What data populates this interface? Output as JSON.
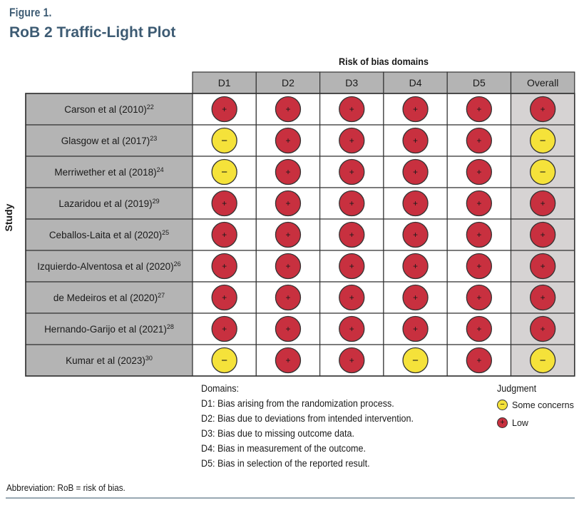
{
  "figure": {
    "label": "Figure 1.",
    "title": "RoB 2 Traffic-Light Plot"
  },
  "chart_data": {
    "type": "table",
    "title": "Risk of bias domains",
    "ylabel": "Study",
    "columns": [
      "D1",
      "D2",
      "D3",
      "D4",
      "D5",
      "Overall"
    ],
    "rows": [
      {
        "study": "Carson et al (2010)",
        "ref": "22",
        "judgments": [
          "Low",
          "Low",
          "Low",
          "Low",
          "Low",
          "Low"
        ]
      },
      {
        "study": "Glasgow et al (2017)",
        "ref": "23",
        "judgments": [
          "Some concerns",
          "Low",
          "Low",
          "Low",
          "Low",
          "Some concerns"
        ]
      },
      {
        "study": "Merriwether et al (2018)",
        "ref": "24",
        "judgments": [
          "Some concerns",
          "Low",
          "Low",
          "Low",
          "Low",
          "Some concerns"
        ]
      },
      {
        "study": "Lazaridou et al (2019)",
        "ref": "29",
        "judgments": [
          "Low",
          "Low",
          "Low",
          "Low",
          "Low",
          "Low"
        ]
      },
      {
        "study": "Ceballos-Laita et al (2020)",
        "ref": "25",
        "judgments": [
          "Low",
          "Low",
          "Low",
          "Low",
          "Low",
          "Low"
        ]
      },
      {
        "study": "Izquierdo-Alventosa et al (2020)",
        "ref": "26",
        "judgments": [
          "Low",
          "Low",
          "Low",
          "Low",
          "Low",
          "Low"
        ]
      },
      {
        "study": "de Medeiros et al (2020)",
        "ref": "27",
        "judgments": [
          "Low",
          "Low",
          "Low",
          "Low",
          "Low",
          "Low"
        ]
      },
      {
        "study": "Hernando-Garijo et al (2021)",
        "ref": "28",
        "judgments": [
          "Low",
          "Low",
          "Low",
          "Low",
          "Low",
          "Low"
        ]
      },
      {
        "study": "Kumar et al (2023)",
        "ref": "30",
        "judgments": [
          "Some concerns",
          "Low",
          "Low",
          "Some concerns",
          "Low",
          "Some concerns"
        ]
      }
    ],
    "judgment_styles": {
      "Low": {
        "symbol": "+",
        "color": "#c8303f"
      },
      "Some concerns": {
        "symbol": "−",
        "color": "#f5e23a"
      }
    }
  },
  "legend": {
    "domains_title": "Domains:",
    "domains": [
      "D1: Bias arising from the randomization process.",
      "D2: Bias due to deviations from intended intervention.",
      "D3: Bias due to missing outcome data.",
      "D4: Bias in measurement of the outcome.",
      "D5: Bias in selection of the reported result."
    ],
    "judgment_title": "Judgment",
    "judgments": [
      {
        "label": "Some concerns",
        "symbol": "−",
        "color": "#f5e23a"
      },
      {
        "label": "Low",
        "symbol": "+",
        "color": "#c8303f"
      }
    ]
  },
  "footer": {
    "abbreviation": "Abbreviation: RoB = risk of bias."
  }
}
